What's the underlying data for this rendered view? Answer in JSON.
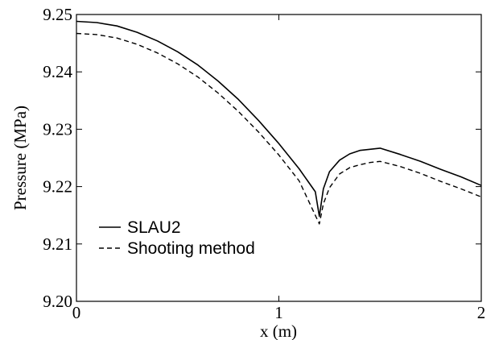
{
  "chart_data": {
    "type": "line",
    "title": "",
    "xlabel": "x (m)",
    "ylabel": "Pressure (MPa)",
    "xlim": [
      0,
      2
    ],
    "ylim": [
      9.2,
      9.25
    ],
    "grid": false,
    "legend_position": "bottom-left",
    "x_ticks": [
      0,
      1,
      2
    ],
    "x_tick_labels": [
      "0",
      "1",
      "2"
    ],
    "y_ticks": [
      9.2,
      9.21,
      9.22,
      9.23,
      9.24,
      9.25
    ],
    "y_tick_labels": [
      "9.20",
      "9.21",
      "9.22",
      "9.23",
      "9.24",
      "9.25"
    ],
    "series": [
      {
        "name": "SLAU2",
        "style": "solid",
        "color": "#000000",
        "x": [
          0,
          0.1,
          0.2,
          0.3,
          0.4,
          0.5,
          0.6,
          0.7,
          0.8,
          0.9,
          1.0,
          1.1,
          1.18,
          1.2,
          1.22,
          1.25,
          1.3,
          1.35,
          1.4,
          1.45,
          1.5,
          1.6,
          1.7,
          1.8,
          1.9,
          2.0
        ],
        "values": [
          9.2488,
          9.2486,
          9.248,
          9.2469,
          9.2454,
          9.2435,
          9.2412,
          9.2384,
          9.2352,
          9.2315,
          9.2275,
          9.2231,
          9.2191,
          9.2148,
          9.2196,
          9.2226,
          9.2246,
          9.2257,
          9.2263,
          9.2265,
          9.2267,
          9.2256,
          9.2244,
          9.223,
          9.2217,
          9.2202
        ]
      },
      {
        "name": "Shooting method",
        "style": "dashed",
        "color": "#000000",
        "x": [
          0,
          0.1,
          0.2,
          0.3,
          0.4,
          0.5,
          0.6,
          0.7,
          0.8,
          0.9,
          1.0,
          1.1,
          1.2,
          1.22,
          1.25,
          1.3,
          1.35,
          1.4,
          1.45,
          1.5,
          1.6,
          1.7,
          1.8,
          1.9,
          2.0
        ],
        "values": [
          9.2467,
          9.2465,
          9.2459,
          9.2448,
          9.2433,
          9.2414,
          9.2391,
          9.2363,
          9.2331,
          9.2295,
          9.2255,
          9.221,
          9.2135,
          9.217,
          9.2198,
          9.2222,
          9.2233,
          9.2238,
          9.2242,
          9.2244,
          9.2235,
          9.2223,
          9.2209,
          9.2196,
          9.2182
        ]
      }
    ]
  }
}
